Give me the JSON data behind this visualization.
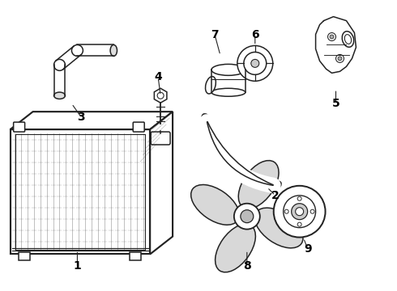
{
  "background_color": "#ffffff",
  "line_color": "#222222",
  "line_width": 1.1,
  "label_fontsize": 9,
  "label_color": "#000000",
  "label_fontsize_bold": 10
}
